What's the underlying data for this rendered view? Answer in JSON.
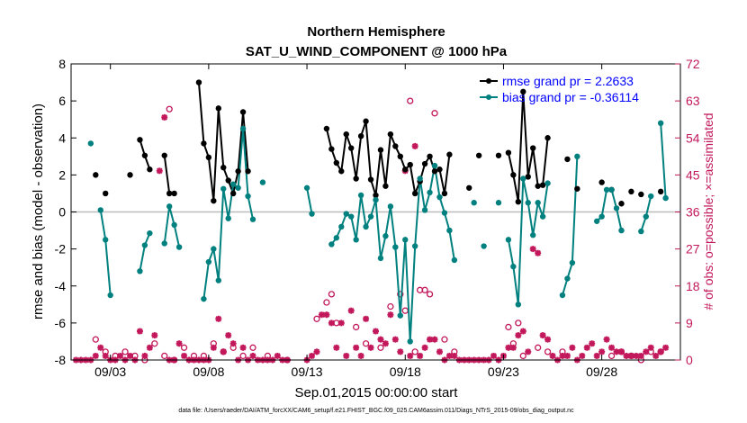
{
  "chart_data": {
    "type": "line",
    "title": "Northern Hemisphere",
    "subtitle": "SAT_U_WIND_COMPONENT @ 1000 hPa",
    "xlabel": "Sep.01,2015 00:00:00 start",
    "ylabel": "rmse and bias (model - observation)",
    "y2label": "# of obs: o=possible; ×=assimilated",
    "xlim": [
      1,
      32
    ],
    "ylim": [
      -8,
      8
    ],
    "y2lim": [
      0,
      72
    ],
    "x_tick_values": [
      3,
      8,
      13,
      18,
      23,
      28
    ],
    "x_tick_labels": [
      "09/03",
      "09/08",
      "09/13",
      "09/18",
      "09/23",
      "09/28"
    ],
    "y_ticks": [
      -8,
      -6,
      -4,
      -2,
      0,
      2,
      4,
      6,
      8
    ],
    "y2_ticks": [
      0,
      9,
      18,
      27,
      36,
      45,
      54,
      63,
      72
    ],
    "footnote": "data file: /Users/raeder/DAI/ATM_forcXX/CAM6_setup/f.e21.FHIST_BGC.f09_025.CAM6assim.011/Diags_NTrS_2015-09/obs_diag_output.nc",
    "colors": {
      "rmse": "#000000",
      "bias": "#00807e",
      "obs": "#c2185b",
      "zero": "#bbbbbb"
    },
    "series": [
      {
        "name": "rmse grand pr = 2.2633",
        "legend": "rmse grand pr = 2.2633",
        "points": [
          [
            2.25,
            2.0
          ],
          [
            2.75,
            1.0
          ],
          [
            4.0,
            2.0
          ],
          [
            4.5,
            3.9
          ],
          [
            4.75,
            3.05
          ],
          [
            5.0,
            2.3
          ],
          [
            5.75,
            3.05
          ],
          [
            6.0,
            1.0
          ],
          [
            6.25,
            1.0
          ],
          [
            7.5,
            7.0
          ],
          [
            7.75,
            3.7
          ],
          [
            8.0,
            2.95
          ],
          [
            8.25,
            0.6
          ],
          [
            8.5,
            5.6
          ],
          [
            8.75,
            2.4
          ],
          [
            9.0,
            1.7
          ],
          [
            9.25,
            1.0
          ],
          [
            9.5,
            2.2
          ],
          [
            9.75,
            5.4
          ],
          [
            10.0,
            2.2
          ],
          [
            14.0,
            4.5
          ],
          [
            14.25,
            3.4
          ],
          [
            14.5,
            2.65
          ],
          [
            14.75,
            2.2
          ],
          [
            15.0,
            4.2
          ],
          [
            15.25,
            3.45
          ],
          [
            15.5,
            1.8
          ],
          [
            15.75,
            4.1
          ],
          [
            16.0,
            4.9
          ],
          [
            16.25,
            1.75
          ],
          [
            16.5,
            0.9
          ],
          [
            16.75,
            3.35
          ],
          [
            17.0,
            1.4
          ],
          [
            17.25,
            4.2
          ],
          [
            17.5,
            3.55
          ],
          [
            17.75,
            3.0
          ],
          [
            18.0,
            2.3
          ],
          [
            18.25,
            2.55
          ],
          [
            18.5,
            1.0
          ],
          [
            18.75,
            1.65
          ],
          [
            19.0,
            2.6
          ],
          [
            19.25,
            3.0
          ],
          [
            19.5,
            2.2
          ],
          [
            19.75,
            2.3
          ],
          [
            20.0,
            1.0
          ],
          [
            20.25,
            3.1
          ],
          [
            21.25,
            1.3
          ],
          [
            21.75,
            3.05
          ],
          [
            22.75,
            3.05
          ],
          [
            23.25,
            3.2
          ],
          [
            23.5,
            2.0
          ],
          [
            23.75,
            0.55
          ],
          [
            24.0,
            6.5
          ],
          [
            24.25,
            1.9
          ],
          [
            24.5,
            3.45
          ],
          [
            24.75,
            1.4
          ],
          [
            25.0,
            1.45
          ],
          [
            25.25,
            4.0
          ],
          [
            26.25,
            2.85
          ],
          [
            26.75,
            1.25
          ],
          [
            28.0,
            1.6
          ],
          [
            28.5,
            1.2
          ],
          [
            29.0,
            0.45
          ],
          [
            29.5,
            1.1
          ],
          [
            30.0,
            0.95
          ],
          [
            31.0,
            1.1
          ]
        ]
      },
      {
        "name": "bias grand pr = -0.36114",
        "legend": "bias grand pr = -0.36114",
        "points": [
          [
            2.0,
            3.7
          ],
          [
            2.5,
            0.1
          ],
          [
            2.75,
            -1.5
          ],
          [
            3.0,
            -4.5
          ],
          [
            4.5,
            -3.2
          ],
          [
            4.75,
            -1.8
          ],
          [
            5.0,
            -1.15
          ],
          [
            5.75,
            -1.7
          ],
          [
            6.0,
            0.3
          ],
          [
            6.25,
            -0.7
          ],
          [
            6.5,
            -1.9
          ],
          [
            7.75,
            -4.7
          ],
          [
            8.0,
            -2.7
          ],
          [
            8.25,
            -2.0
          ],
          [
            8.5,
            -3.7
          ],
          [
            8.75,
            1.25
          ],
          [
            9.0,
            -0.35
          ],
          [
            9.25,
            1.5
          ],
          [
            9.5,
            1.3
          ],
          [
            9.75,
            4.5
          ],
          [
            10.0,
            0.85
          ],
          [
            10.25,
            -0.4
          ],
          [
            10.75,
            1.6
          ],
          [
            13.0,
            1.3
          ],
          [
            13.25,
            -0.1
          ],
          [
            14.25,
            -1.75
          ],
          [
            14.5,
            -1.4
          ],
          [
            14.75,
            -0.8
          ],
          [
            15.0,
            -0.1
          ],
          [
            15.25,
            -0.25
          ],
          [
            15.5,
            -1.5
          ],
          [
            15.75,
            0.9
          ],
          [
            16.0,
            -0.8
          ],
          [
            16.25,
            -0.25
          ],
          [
            16.5,
            0.65
          ],
          [
            16.75,
            -2.5
          ],
          [
            17.0,
            -1.3
          ],
          [
            17.25,
            0.3
          ],
          [
            17.5,
            -1.9
          ],
          [
            17.75,
            -5.6
          ],
          [
            18.0,
            -1.5
          ],
          [
            18.25,
            -7.0
          ],
          [
            18.5,
            -1.85
          ],
          [
            18.75,
            1.8
          ],
          [
            19.0,
            0.1
          ],
          [
            19.25,
            1.05
          ],
          [
            19.5,
            2.5
          ],
          [
            19.75,
            0.8
          ],
          [
            20.0,
            -0.05
          ],
          [
            20.25,
            -1.0
          ],
          [
            20.5,
            -2.6
          ],
          [
            21.5,
            0.5
          ],
          [
            22.0,
            -1.85
          ],
          [
            22.75,
            0.5
          ],
          [
            23.25,
            -1.5
          ],
          [
            23.5,
            -2.95
          ],
          [
            23.75,
            -5.0
          ],
          [
            24.0,
            1.8
          ],
          [
            24.25,
            0.5
          ],
          [
            24.5,
            -1.25
          ],
          [
            24.75,
            0.5
          ],
          [
            25.0,
            -0.25
          ],
          [
            25.25,
            1.55
          ],
          [
            26.0,
            -4.5
          ],
          [
            26.25,
            -3.6
          ],
          [
            26.5,
            -2.75
          ],
          [
            26.75,
            3.0
          ],
          [
            27.75,
            -0.5
          ],
          [
            28.0,
            -0.25
          ],
          [
            28.25,
            1.2
          ],
          [
            28.5,
            1.2
          ],
          [
            28.75,
            0.2
          ],
          [
            29.0,
            -1.0
          ],
          [
            30.0,
            -1.05
          ],
          [
            30.25,
            -0.25
          ],
          [
            30.5,
            0.85
          ],
          [
            31.0,
            4.8
          ],
          [
            31.25,
            0.75
          ]
        ]
      }
    ],
    "obs_possible": [
      [
        2.25,
        5
      ],
      [
        2.75,
        2
      ],
      [
        3.25,
        1
      ],
      [
        3.75,
        2
      ],
      [
        4.25,
        1
      ],
      [
        4.75,
        0
      ],
      [
        5.25,
        4
      ],
      [
        5.75,
        1
      ],
      [
        6.0,
        61
      ],
      [
        6.25,
        0
      ],
      [
        6.75,
        3
      ],
      [
        7.25,
        1
      ],
      [
        7.75,
        1
      ],
      [
        8.25,
        4
      ],
      [
        8.75,
        2
      ],
      [
        9.25,
        3
      ],
      [
        9.75,
        1
      ],
      [
        10.25,
        3
      ],
      [
        11.0,
        1
      ],
      [
        12.0,
        0
      ],
      [
        13.5,
        10
      ],
      [
        14.0,
        14
      ],
      [
        14.25,
        16
      ],
      [
        14.5,
        9
      ],
      [
        15.5,
        8
      ],
      [
        16.0,
        4
      ],
      [
        16.75,
        3
      ],
      [
        17.25,
        13
      ],
      [
        17.75,
        16
      ],
      [
        18.0,
        12
      ],
      [
        18.25,
        63
      ],
      [
        18.5,
        2
      ],
      [
        18.75,
        17
      ],
      [
        19.0,
        17
      ],
      [
        19.25,
        16
      ],
      [
        19.5,
        60
      ],
      [
        20.0,
        5
      ],
      [
        20.5,
        2
      ],
      [
        23.25,
        8
      ],
      [
        23.5,
        4
      ],
      [
        23.75,
        9
      ],
      [
        24.0,
        1
      ],
      [
        24.75,
        3
      ],
      [
        25.25,
        2
      ],
      [
        26.0,
        2
      ],
      [
        28.5,
        1
      ],
      [
        29.0,
        2
      ],
      [
        29.5,
        1
      ],
      [
        30.0,
        0
      ],
      [
        30.5,
        2
      ],
      [
        31.0,
        2
      ]
    ],
    "obs_assimilated": [
      [
        1.25,
        0
      ],
      [
        1.5,
        0
      ],
      [
        1.75,
        0
      ],
      [
        2.0,
        0
      ],
      [
        2.25,
        1
      ],
      [
        2.5,
        3
      ],
      [
        2.75,
        1
      ],
      [
        3.0,
        0
      ],
      [
        3.25,
        0
      ],
      [
        3.5,
        1
      ],
      [
        3.75,
        0
      ],
      [
        4.0,
        1
      ],
      [
        4.25,
        0
      ],
      [
        4.5,
        7
      ],
      [
        4.75,
        1
      ],
      [
        5.0,
        3
      ],
      [
        5.25,
        6
      ],
      [
        5.5,
        46
      ],
      [
        5.75,
        59
      ],
      [
        6.0,
        0
      ],
      [
        6.25,
        0
      ],
      [
        6.5,
        4
      ],
      [
        6.75,
        1
      ],
      [
        7.0,
        0
      ],
      [
        7.25,
        0
      ],
      [
        7.5,
        0
      ],
      [
        7.75,
        0
      ],
      [
        8.0,
        0
      ],
      [
        8.25,
        3
      ],
      [
        8.5,
        10
      ],
      [
        8.75,
        2
      ],
      [
        9.0,
        6
      ],
      [
        9.25,
        4
      ],
      [
        9.5,
        0
      ],
      [
        9.75,
        3
      ],
      [
        10.0,
        0
      ],
      [
        10.25,
        1
      ],
      [
        10.5,
        0
      ],
      [
        10.75,
        0
      ],
      [
        11.0,
        0
      ],
      [
        11.25,
        0
      ],
      [
        11.5,
        1
      ],
      [
        11.75,
        0
      ],
      [
        12.0,
        0
      ],
      [
        13.0,
        0
      ],
      [
        13.25,
        1
      ],
      [
        13.5,
        2
      ],
      [
        13.75,
        11
      ],
      [
        14.0,
        11
      ],
      [
        14.25,
        9
      ],
      [
        14.5,
        3
      ],
      [
        14.75,
        9
      ],
      [
        15.0,
        1
      ],
      [
        15.25,
        12
      ],
      [
        15.5,
        3
      ],
      [
        15.75,
        1
      ],
      [
        16.0,
        10
      ],
      [
        16.25,
        3
      ],
      [
        16.5,
        7
      ],
      [
        16.75,
        5
      ],
      [
        17.0,
        4
      ],
      [
        17.25,
        11
      ],
      [
        17.5,
        5
      ],
      [
        17.75,
        2
      ],
      [
        18.0,
        46
      ],
      [
        18.25,
        1
      ],
      [
        18.5,
        52
      ],
      [
        18.75,
        1
      ],
      [
        19.0,
        3
      ],
      [
        19.25,
        5
      ],
      [
        19.5,
        5
      ],
      [
        19.75,
        2
      ],
      [
        20.0,
        0
      ],
      [
        20.25,
        1
      ],
      [
        20.5,
        1
      ],
      [
        20.75,
        0
      ],
      [
        21.0,
        0
      ],
      [
        21.25,
        0
      ],
      [
        21.5,
        0
      ],
      [
        21.75,
        0
      ],
      [
        22.0,
        0
      ],
      [
        22.25,
        0
      ],
      [
        22.5,
        1
      ],
      [
        22.75,
        0
      ],
      [
        23.0,
        1
      ],
      [
        23.25,
        3
      ],
      [
        23.5,
        3
      ],
      [
        23.75,
        6
      ],
      [
        24.0,
        7
      ],
      [
        24.25,
        2
      ],
      [
        24.5,
        27
      ],
      [
        24.75,
        26
      ],
      [
        25.0,
        6
      ],
      [
        25.25,
        5
      ],
      [
        25.5,
        1
      ],
      [
        25.75,
        0
      ],
      [
        26.0,
        1
      ],
      [
        26.25,
        1
      ],
      [
        26.5,
        3
      ],
      [
        26.75,
        0
      ],
      [
        27.0,
        1
      ],
      [
        27.25,
        3
      ],
      [
        27.5,
        4
      ],
      [
        27.75,
        1
      ],
      [
        28.0,
        2
      ],
      [
        28.25,
        5
      ],
      [
        28.5,
        3
      ],
      [
        28.75,
        2
      ],
      [
        29.0,
        2
      ],
      [
        29.25,
        1
      ],
      [
        29.5,
        1
      ],
      [
        29.75,
        1
      ],
      [
        30.0,
        1
      ],
      [
        30.25,
        2
      ],
      [
        30.5,
        3
      ],
      [
        30.75,
        1
      ],
      [
        31.0,
        2
      ],
      [
        31.25,
        3
      ]
    ]
  }
}
